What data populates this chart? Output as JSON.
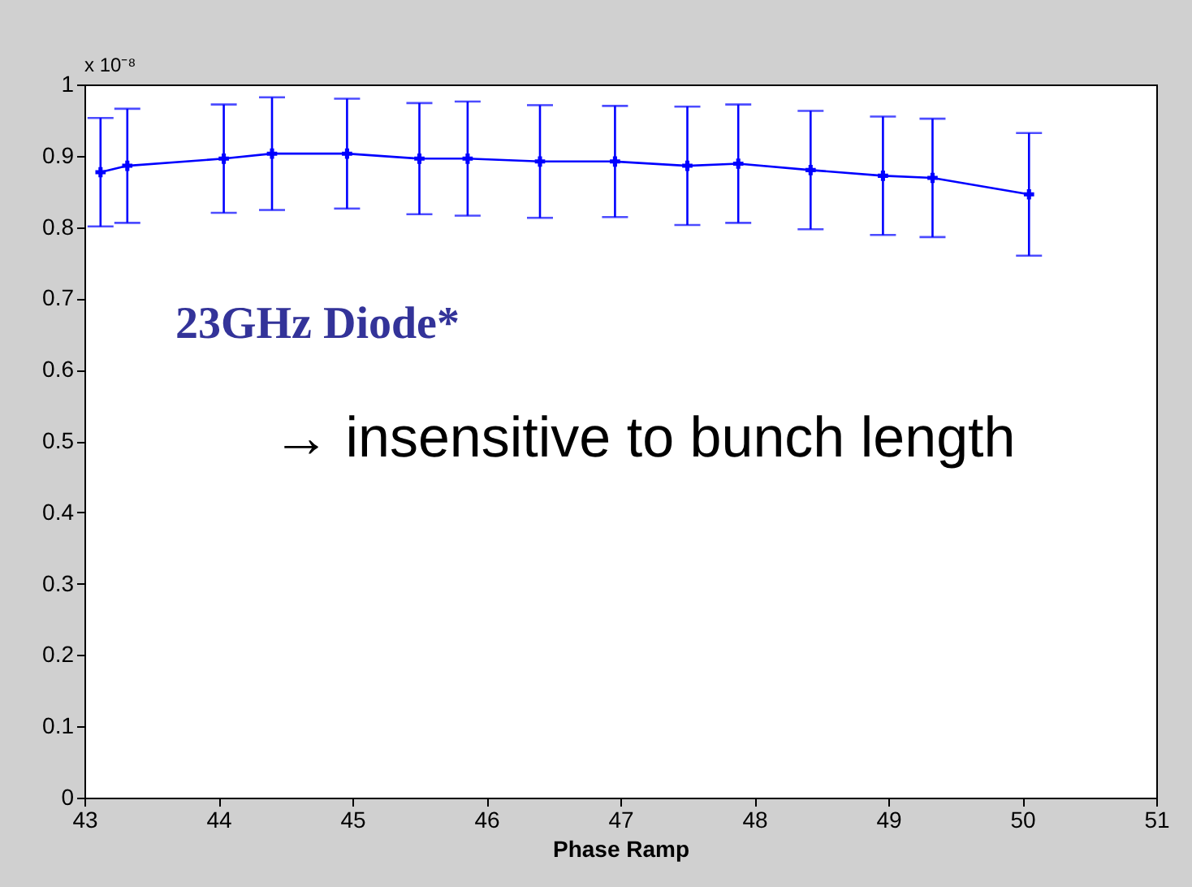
{
  "chart_data": {
    "type": "line",
    "xlabel": "Phase Ramp",
    "x": [
      43.12,
      43.32,
      44.04,
      44.4,
      44.96,
      45.5,
      45.86,
      46.4,
      46.96,
      47.5,
      47.88,
      48.42,
      48.96,
      49.33,
      50.05
    ],
    "series": [
      {
        "color": "#0000ff",
        "values": [
          0.877,
          0.886,
          0.896,
          0.903,
          0.903,
          0.896,
          0.896,
          0.892,
          0.892,
          0.886,
          0.889,
          0.88,
          0.872,
          0.869,
          0.846
        ],
        "errors": [
          0.076,
          0.08,
          0.076,
          0.079,
          0.077,
          0.078,
          0.08,
          0.079,
          0.078,
          0.083,
          0.083,
          0.083,
          0.083,
          0.083,
          0.086
        ]
      }
    ],
    "xlim": [
      43,
      51
    ],
    "xticks": [
      43,
      44,
      45,
      46,
      47,
      48,
      49,
      50,
      51
    ],
    "ylim": [
      0,
      1
    ],
    "yticks": [
      0,
      0.1,
      0.2,
      0.3,
      0.4,
      0.5,
      0.6,
      0.7,
      0.8,
      0.9,
      1
    ],
    "marker": "cross",
    "grid": false,
    "annotations": [
      "x 10⁻⁸",
      "23GHz Diode*",
      "→ insensitive to bunch length"
    ]
  }
}
